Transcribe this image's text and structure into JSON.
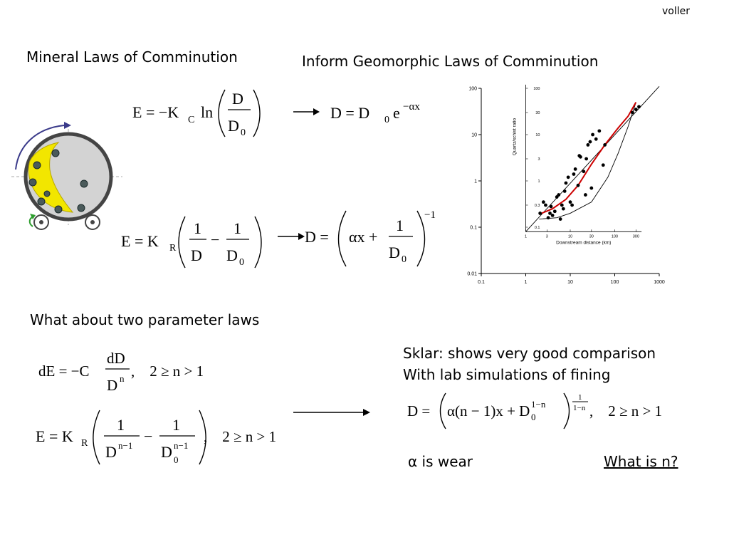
{
  "author": "voller",
  "titles": {
    "mineral": "Mineral Laws of Comminution",
    "geomorphic": "Inform Geomorphic Laws of Comminution",
    "two_param": "What about two parameter laws"
  },
  "sklar": {
    "line1": "Sklar: shows very good comparison",
    "line2": "With lab simulations of fining"
  },
  "alpha_wear": "α is wear",
  "what_is_n": "What is n?",
  "equations": {
    "eq1": {
      "lhs": "E = −K",
      "sub": "C",
      "ln": "ln",
      "num": "D",
      "den": "D",
      "den_sub": "0"
    },
    "eq2": {
      "lhs": "D = D",
      "sub": "0",
      "base": "e",
      "exp": "−αx"
    },
    "eq3": {
      "lhs": "E = K",
      "sub": "R",
      "num1": "1",
      "den1": "D",
      "minus": "−",
      "num2": "1",
      "den2": "D",
      "den2_sub": "0"
    },
    "eq4": {
      "lhs": "D =",
      "ax": "αx +",
      "num": "1",
      "den": "D",
      "den_sub": "0",
      "exp": "−1"
    },
    "eq5": {
      "lhs": "dE = −C",
      "num": "dD",
      "den": "D",
      "den_exp": "n",
      "cond": ",    2 ≥ n > 1"
    },
    "eq6": {
      "lhs": "E = K",
      "sub": "R",
      "num1": "1",
      "den1": "D",
      "den1_exp": "n−1",
      "minus": "−",
      "num2": "1",
      "den2": "D",
      "den2_exp": "n−1",
      "den2_sub": "0",
      "cond": ",    2 ≥ n > 1"
    },
    "eq7": {
      "lhs": "D =",
      "body": "α(n − 1)x + D",
      "sub": "0",
      "inner_exp": "1−n",
      "outer_num": "1",
      "outer_den": "1−n",
      "cond": ",    2 ≥ n > 1"
    }
  },
  "colors": {
    "fit_curve": "#cc0000",
    "mill_gray": "#d3d3d3",
    "mill_balls": "#4a5a5a",
    "mill_particles": "#f2e600",
    "mill_arrow_blue": "#3a3a8a",
    "mill_arrow_green": "#2e9e2e"
  },
  "chart_data": {
    "type": "scatter",
    "x_scale": "log",
    "y_scale": "log",
    "xlim": [
      0.1,
      1000
    ],
    "ylim": [
      0.01,
      100
    ],
    "x_ticks": [
      "0.1",
      "1",
      "10",
      "100",
      "1000"
    ],
    "y_ticks": [
      "0.01",
      "0.1",
      "1",
      "10",
      "100"
    ],
    "inner_xlabel": "Downstream distance (km)",
    "inner_ylabel": "Quartz/schist ratio",
    "inner_x_ticks": [
      "1",
      "3",
      "10",
      "30",
      "100",
      "300"
    ],
    "inner_y_ticks": [
      "0.1",
      "0.3",
      "1",
      "3",
      "10",
      "30",
      "100"
    ],
    "points": [
      [
        2.1,
        0.2
      ],
      [
        2.5,
        0.35
      ],
      [
        2.8,
        0.3
      ],
      [
        3.2,
        0.16
      ],
      [
        3.5,
        0.2
      ],
      [
        3.7,
        0.28
      ],
      [
        4,
        0.18
      ],
      [
        4.5,
        0.22
      ],
      [
        5,
        0.45
      ],
      [
        5.5,
        0.5
      ],
      [
        6,
        0.15
      ],
      [
        6.5,
        0.3
      ],
      [
        7,
        0.25
      ],
      [
        7.5,
        0.6
      ],
      [
        8,
        0.9
      ],
      [
        9,
        1.2
      ],
      [
        10,
        0.35
      ],
      [
        11,
        0.3
      ],
      [
        12,
        1.4
      ],
      [
        13,
        1.8
      ],
      [
        15,
        0.8
      ],
      [
        16,
        3.5
      ],
      [
        17,
        3.3
      ],
      [
        20,
        1.6
      ],
      [
        22,
        0.5
      ],
      [
        23,
        3
      ],
      [
        25,
        6
      ],
      [
        28,
        7
      ],
      [
        30,
        0.7
      ],
      [
        32,
        10
      ],
      [
        38,
        8
      ],
      [
        45,
        12
      ],
      [
        55,
        2.2
      ],
      [
        60,
        6
      ],
      [
        250,
        30
      ],
      [
        300,
        35
      ],
      [
        350,
        40
      ]
    ],
    "red_fit": [
      [
        2,
        0.19
      ],
      [
        4,
        0.25
      ],
      [
        8,
        0.4
      ],
      [
        15,
        0.8
      ],
      [
        30,
        2.3
      ],
      [
        60,
        6
      ],
      [
        120,
        14
      ],
      [
        200,
        25
      ],
      [
        300,
        50
      ]
    ],
    "line_fit": [
      [
        1,
        0.08
      ],
      [
        1000,
        110
      ]
    ],
    "lower_envelope": [
      [
        2,
        0.15
      ],
      [
        5,
        0.16
      ],
      [
        10,
        0.2
      ],
      [
        30,
        0.35
      ],
      [
        70,
        1.2
      ],
      [
        120,
        4
      ],
      [
        200,
        15
      ],
      [
        300,
        50
      ]
    ]
  }
}
